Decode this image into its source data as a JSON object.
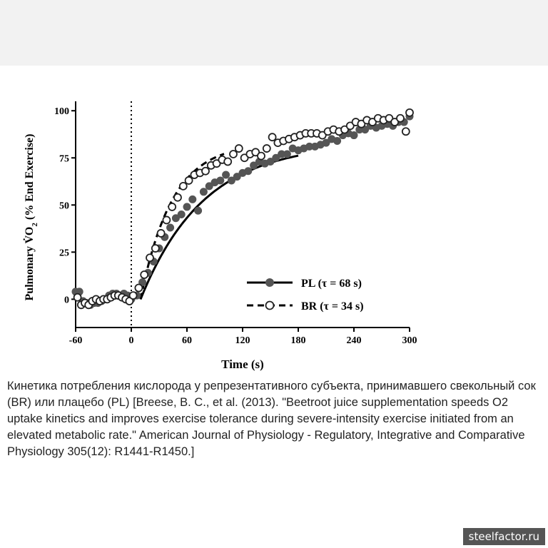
{
  "chart_data": {
    "type": "scatter",
    "xlabel": "Time (s)",
    "ylabel_prefix": "Pulmonary V̇O",
    "ylabel_sub": "2",
    "ylabel_suffix": " (% End Exercise)",
    "xlim": [
      -60,
      300
    ],
    "ylim": [
      -15,
      105
    ],
    "xticks": [
      -60,
      0,
      60,
      120,
      180,
      240,
      300
    ],
    "yticks": [
      0,
      25,
      50,
      75,
      100
    ],
    "vline_x": 0,
    "series": [
      {
        "name": "PL (τ = 68 s)",
        "marker": "filled",
        "color": "#555555",
        "fit_line": "solid",
        "fit": {
          "x_start": 10,
          "tau": 68,
          "fit_end": 180
        },
        "points": [
          [
            -60,
            4
          ],
          [
            -56,
            4
          ],
          [
            -52,
            -1
          ],
          [
            -48,
            -2
          ],
          [
            -44,
            -3
          ],
          [
            -40,
            -2
          ],
          [
            -36,
            -2
          ],
          [
            -32,
            -1
          ],
          [
            -28,
            0
          ],
          [
            -24,
            2
          ],
          [
            -20,
            3
          ],
          [
            -16,
            3
          ],
          [
            -12,
            2
          ],
          [
            -8,
            3
          ],
          [
            -4,
            2
          ],
          [
            0,
            0
          ],
          [
            6,
            2
          ],
          [
            12,
            9
          ],
          [
            18,
            14
          ],
          [
            24,
            20
          ],
          [
            30,
            27
          ],
          [
            36,
            33
          ],
          [
            42,
            38
          ],
          [
            48,
            43
          ],
          [
            54,
            45
          ],
          [
            60,
            49
          ],
          [
            66,
            53
          ],
          [
            72,
            47
          ],
          [
            78,
            57
          ],
          [
            84,
            60
          ],
          [
            90,
            62
          ],
          [
            96,
            63
          ],
          [
            102,
            66
          ],
          [
            108,
            63
          ],
          [
            114,
            65
          ],
          [
            120,
            67
          ],
          [
            126,
            68
          ],
          [
            132,
            71
          ],
          [
            138,
            73
          ],
          [
            144,
            72
          ],
          [
            150,
            73
          ],
          [
            156,
            75
          ],
          [
            162,
            77
          ],
          [
            168,
            77
          ],
          [
            174,
            80
          ],
          [
            180,
            79
          ],
          [
            186,
            80
          ],
          [
            192,
            81
          ],
          [
            198,
            81
          ],
          [
            204,
            82
          ],
          [
            210,
            83
          ],
          [
            216,
            85
          ],
          [
            222,
            84
          ],
          [
            228,
            87
          ],
          [
            234,
            88
          ],
          [
            240,
            87
          ],
          [
            246,
            90
          ],
          [
            252,
            90
          ],
          [
            258,
            92
          ],
          [
            264,
            91
          ],
          [
            270,
            92
          ],
          [
            276,
            93
          ],
          [
            282,
            92
          ],
          [
            288,
            94
          ],
          [
            294,
            94
          ],
          [
            300,
            97
          ]
        ]
      },
      {
        "name": "BR (τ = 34 s)",
        "marker": "open",
        "color": "#222222",
        "fit_line": "dashed",
        "fit": {
          "x_start": 10,
          "tau": 34,
          "fit_end": 100
        },
        "points": [
          [
            -58,
            1
          ],
          [
            -54,
            -3
          ],
          [
            -50,
            -2
          ],
          [
            -46,
            -3
          ],
          [
            -42,
            -1
          ],
          [
            -38,
            0
          ],
          [
            -34,
            -1
          ],
          [
            -30,
            0
          ],
          [
            -26,
            0
          ],
          [
            -22,
            1
          ],
          [
            -18,
            2
          ],
          [
            -14,
            2
          ],
          [
            -10,
            1
          ],
          [
            -6,
            0
          ],
          [
            -2,
            -1
          ],
          [
            2,
            2
          ],
          [
            8,
            6
          ],
          [
            14,
            13
          ],
          [
            20,
            22
          ],
          [
            26,
            27
          ],
          [
            32,
            35
          ],
          [
            38,
            42
          ],
          [
            44,
            49
          ],
          [
            50,
            54
          ],
          [
            56,
            60
          ],
          [
            62,
            63
          ],
          [
            68,
            66
          ],
          [
            74,
            67
          ],
          [
            80,
            68
          ],
          [
            86,
            71
          ],
          [
            92,
            72
          ],
          [
            98,
            74
          ],
          [
            104,
            73
          ],
          [
            110,
            77
          ],
          [
            116,
            80
          ],
          [
            122,
            75
          ],
          [
            128,
            77
          ],
          [
            134,
            78
          ],
          [
            140,
            76
          ],
          [
            146,
            80
          ],
          [
            152,
            86
          ],
          [
            158,
            83
          ],
          [
            164,
            84
          ],
          [
            170,
            85
          ],
          [
            176,
            86
          ],
          [
            182,
            87
          ],
          [
            188,
            88
          ],
          [
            194,
            88
          ],
          [
            200,
            88
          ],
          [
            206,
            87
          ],
          [
            212,
            89
          ],
          [
            218,
            90
          ],
          [
            224,
            89
          ],
          [
            230,
            90
          ],
          [
            236,
            92
          ],
          [
            242,
            94
          ],
          [
            248,
            93
          ],
          [
            254,
            95
          ],
          [
            260,
            94
          ],
          [
            266,
            96
          ],
          [
            272,
            95
          ],
          [
            278,
            96
          ],
          [
            284,
            94
          ],
          [
            290,
            96
          ],
          [
            296,
            89
          ],
          [
            300,
            99
          ]
        ]
      }
    ]
  },
  "caption": "Кинетика потребления кислорода у репрезентативного субъекта, принимавшего свекольный сок (BR) или плацебо (PL) [Breese, B. C., et al. (2013). \"Beetroot juice supplementation speeds O2 uptake kinetics and improves exercise tolerance during severe-intensity exercise initiated from an elevated metabolic rate.\" American Journal of Physiology - Regulatory, Integrative and Comparative Physiology 305(12): R1441-R1450.]",
  "watermark": "steelfactor.ru"
}
